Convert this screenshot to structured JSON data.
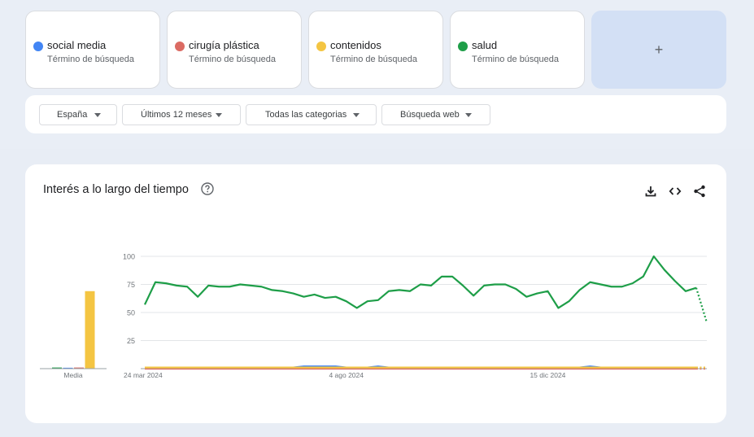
{
  "terms": [
    {
      "name": "social media",
      "sub": "Término de búsqueda",
      "color": "#4285f4"
    },
    {
      "name": "cirugía plástica",
      "sub": "Término de búsqueda",
      "color": "#db6b63"
    },
    {
      "name": "contenidos",
      "sub": "Término de búsqueda",
      "color": "#f4c542"
    },
    {
      "name": "salud",
      "sub": "Término de búsqueda",
      "color": "#1e9e48"
    }
  ],
  "add_label": "+",
  "filters": {
    "region": "España",
    "period": "Últimos 12 meses",
    "category": "Todas las categorias",
    "search_type": "Búsqueda web"
  },
  "panel": {
    "title": "Interés a lo largo del tiempo",
    "help_icon": "help-circle-icon",
    "tools": [
      "download-icon",
      "embed-code-icon",
      "share-icon"
    ]
  },
  "chart_data": {
    "type": "line",
    "ylim": [
      0,
      100
    ],
    "yticks": [
      "100",
      "75",
      "50",
      "25"
    ],
    "xtick_labels": [
      "24 mar 2024",
      "4 ago 2024",
      "15 dic 2024"
    ],
    "xtick_indices": [
      0,
      19,
      38
    ],
    "partial_last_point": true,
    "average": {
      "label": "Media",
      "values": [
        1,
        0,
        1,
        69
      ]
    },
    "series": [
      {
        "name": "salud",
        "color": "#1e9e48",
        "values": [
          57,
          77,
          76,
          74,
          73,
          64,
          74,
          73,
          73,
          75,
          74,
          73,
          70,
          69,
          67,
          64,
          66,
          63,
          64,
          60,
          54,
          60,
          61,
          69,
          70,
          69,
          75,
          74,
          82,
          82,
          74,
          65,
          74,
          75,
          75,
          71,
          64,
          67,
          69,
          54,
          60,
          70,
          77,
          75,
          73,
          73,
          76,
          82,
          100,
          88,
          78,
          69,
          72,
          41
        ]
      },
      {
        "name": "social media",
        "color": "#4285f4",
        "values": [
          1,
          1,
          1,
          1,
          1,
          1,
          1,
          1,
          1,
          1,
          1,
          1,
          1,
          1,
          1,
          2,
          2,
          2,
          2,
          1,
          1,
          1,
          2,
          1,
          1,
          1,
          1,
          1,
          1,
          1,
          1,
          1,
          1,
          1,
          1,
          1,
          1,
          1,
          1,
          1,
          1,
          1,
          2,
          1,
          1,
          1,
          1,
          1,
          1,
          1,
          1,
          1,
          1,
          1
        ]
      },
      {
        "name": "cirugía plástica",
        "color": "#db6b63",
        "values": [
          0,
          0,
          0,
          0,
          0,
          0,
          0,
          0,
          0,
          0,
          0,
          0,
          0,
          0,
          0,
          0,
          0,
          0,
          0,
          0,
          0,
          0,
          0,
          0,
          0,
          0,
          0,
          0,
          0,
          0,
          0,
          0,
          0,
          0,
          0,
          0,
          0,
          0,
          0,
          0,
          0,
          0,
          0,
          0,
          0,
          0,
          0,
          0,
          0,
          0,
          0,
          0,
          0,
          0
        ]
      },
      {
        "name": "contenidos",
        "color": "#f4c542",
        "values": [
          1,
          1,
          1,
          1,
          1,
          1,
          1,
          1,
          1,
          1,
          1,
          1,
          1,
          1,
          1,
          1,
          1,
          1,
          1,
          1,
          1,
          1,
          1,
          1,
          1,
          1,
          1,
          1,
          1,
          1,
          1,
          1,
          1,
          1,
          1,
          1,
          1,
          1,
          1,
          1,
          1,
          1,
          1,
          1,
          1,
          1,
          1,
          1,
          1,
          1,
          1,
          1,
          1,
          1
        ]
      }
    ]
  }
}
